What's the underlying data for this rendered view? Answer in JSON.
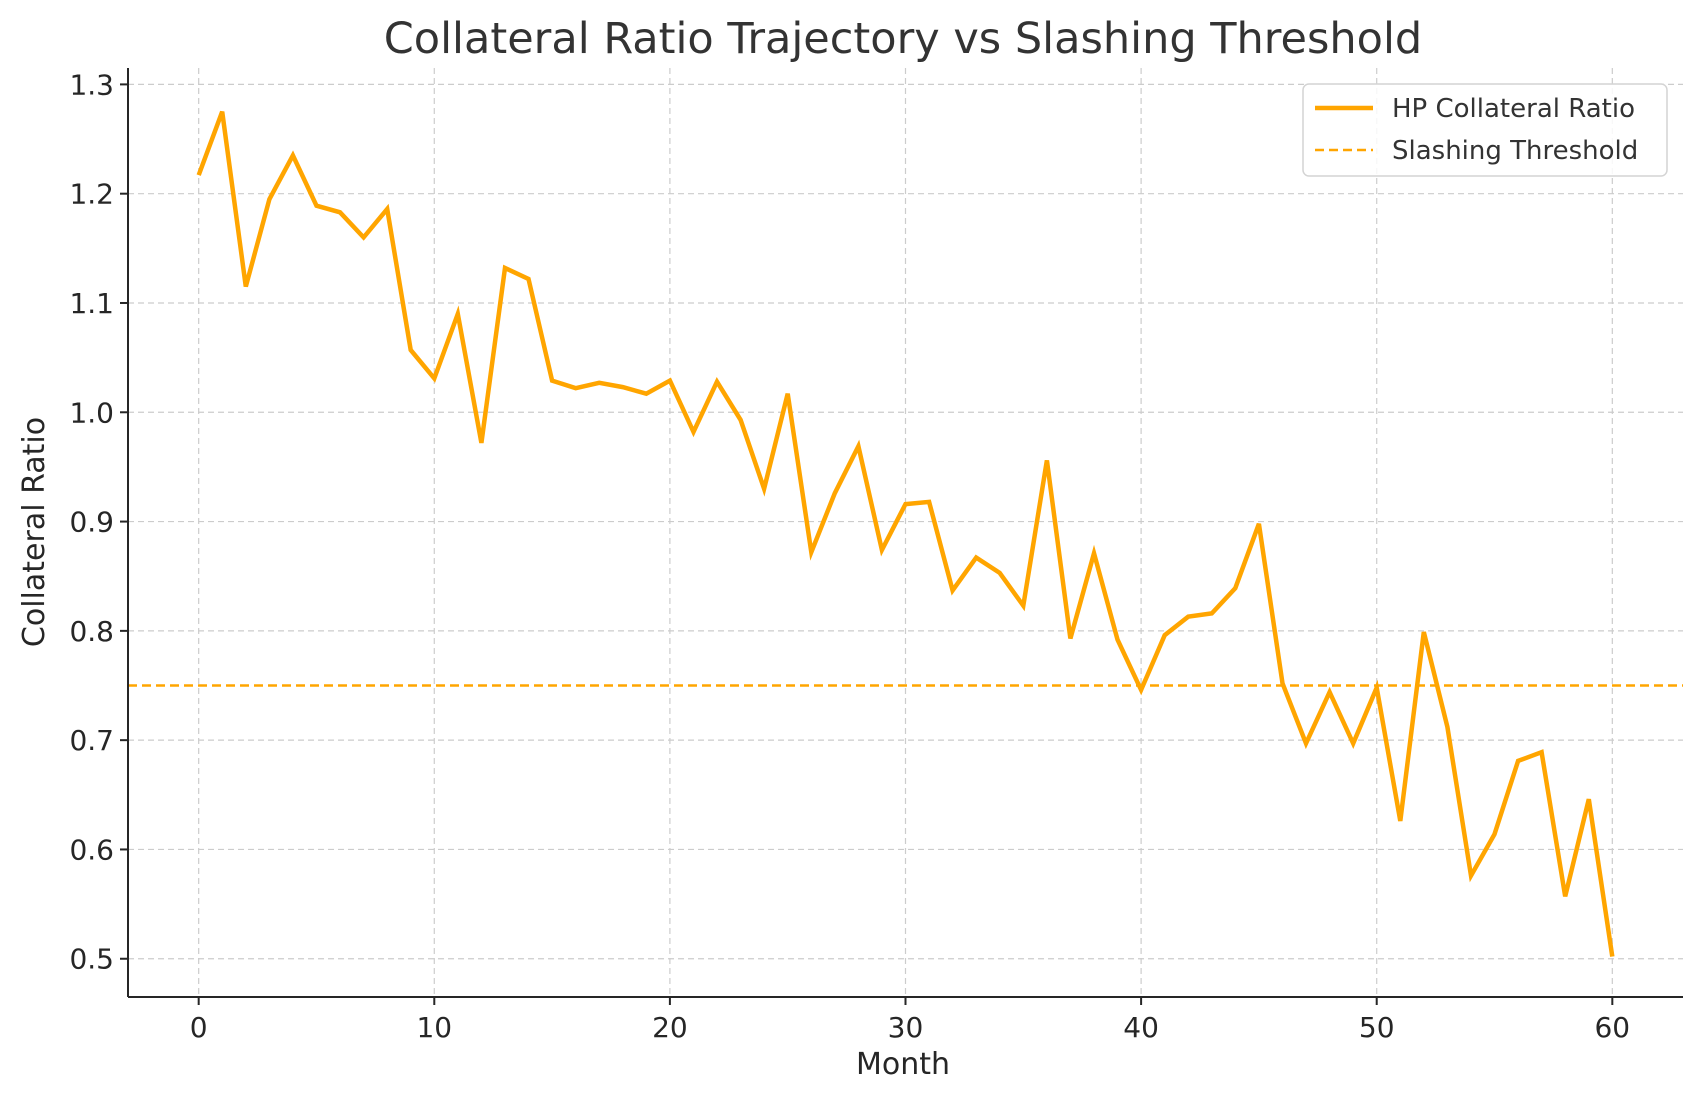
{
  "chart_data": {
    "type": "line",
    "title": "Collateral Ratio Trajectory vs Slashing Threshold",
    "xlabel": "Month",
    "ylabel": "Collateral Ratio",
    "xlim": [
      -3,
      63
    ],
    "ylim": [
      0.465,
      1.315
    ],
    "xticks": [
      0,
      10,
      20,
      30,
      40,
      50,
      60
    ],
    "yticks": [
      0.5,
      0.6,
      0.7,
      0.8,
      0.9,
      1.0,
      1.1,
      1.2,
      1.3
    ],
    "ytick_labels": [
      "0.5",
      "0.6",
      "0.7",
      "0.8",
      "0.9",
      "1.0",
      "1.1",
      "1.2",
      "1.3"
    ],
    "grid": true,
    "legend_position": "top-right",
    "series": [
      {
        "name": "HP Collateral Ratio",
        "style": "solid",
        "color": "#FFA500",
        "x": [
          0,
          1,
          2,
          3,
          4,
          5,
          6,
          7,
          8,
          9,
          10,
          11,
          12,
          13,
          14,
          15,
          16,
          17,
          18,
          19,
          20,
          21,
          22,
          23,
          24,
          25,
          26,
          27,
          28,
          29,
          30,
          31,
          32,
          33,
          34,
          35,
          36,
          37,
          38,
          39,
          40,
          41,
          42,
          43,
          44,
          45,
          46,
          47,
          48,
          49,
          50,
          51,
          52,
          53,
          54,
          55,
          56,
          57,
          58,
          59,
          60
        ],
        "values": [
          1.217,
          1.275,
          1.115,
          1.195,
          1.235,
          1.189,
          1.183,
          1.16,
          1.186,
          1.057,
          1.031,
          1.09,
          0.972,
          1.132,
          1.122,
          1.029,
          1.022,
          1.027,
          1.023,
          1.017,
          1.029,
          0.982,
          1.028,
          0.993,
          0.93,
          1.017,
          0.872,
          0.926,
          0.969,
          0.874,
          0.916,
          0.918,
          0.837,
          0.867,
          0.853,
          0.823,
          0.956,
          0.793,
          0.871,
          0.792,
          0.746,
          0.796,
          0.813,
          0.816,
          0.839,
          0.898,
          0.752,
          0.697,
          0.744,
          0.697,
          0.748,
          0.626,
          0.799,
          0.712,
          0.576,
          0.614,
          0.681,
          0.689,
          0.557,
          0.646,
          0.502
        ]
      },
      {
        "name": "Slashing Threshold",
        "style": "dashed",
        "color": "#FFA500",
        "value": 0.75
      }
    ]
  }
}
